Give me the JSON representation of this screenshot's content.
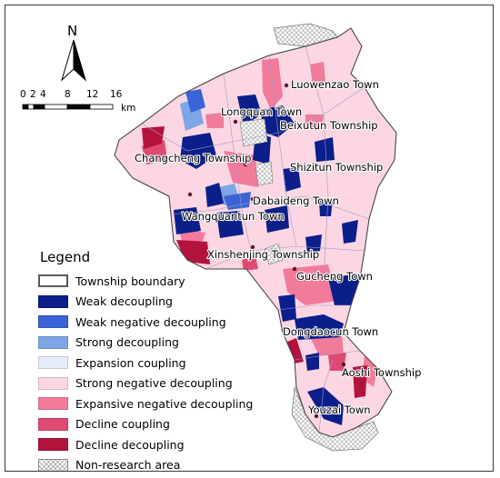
{
  "north_arrow": {
    "label": "N"
  },
  "scale_bar": {
    "ticks": [
      "0",
      "2",
      "4",
      "8",
      "12",
      "16"
    ],
    "unit": "km"
  },
  "towns": {
    "luowenzao": "Luowenzao Town",
    "longquan": "Longquan Town",
    "beixutun": "Beixutun Township",
    "changcheng": "Changcheng Township",
    "shizitun": "Shizitun Township",
    "dabaideng": "Dabaideng Town",
    "wangquantun": "Wangquantun Town",
    "xinshenjing": "Xinshenjing Township",
    "gucheng": "Gucheng Town",
    "dongdaocun": "Dongdaocun Town",
    "aoshi": "Aoshi Township",
    "youzai": "Youzai Town"
  },
  "legend": {
    "title": "Legend",
    "items": [
      {
        "label": "Township boundary",
        "color": "#ffffff",
        "icon": "outline-box"
      },
      {
        "label": "Weak decoupling",
        "color": "#0b1f8a"
      },
      {
        "label": "Weak negative decoupling",
        "color": "#3a64d6"
      },
      {
        "label": "Strong decoupling",
        "color": "#7ea6e6"
      },
      {
        "label": "Expansion coupling",
        "color": "#e6ecfa"
      },
      {
        "label": "Strong negative decoupling",
        "color": "#fcd6e3"
      },
      {
        "label": "Expansive negative decoupling",
        "color": "#f27a9a"
      },
      {
        "label": "Decline coupling",
        "color": "#de4a72"
      },
      {
        "label": "Decline decoupling",
        "color": "#b3123d"
      },
      {
        "label": "Non-research area",
        "color": "#d4d4d4",
        "icon": "hatch"
      }
    ]
  }
}
